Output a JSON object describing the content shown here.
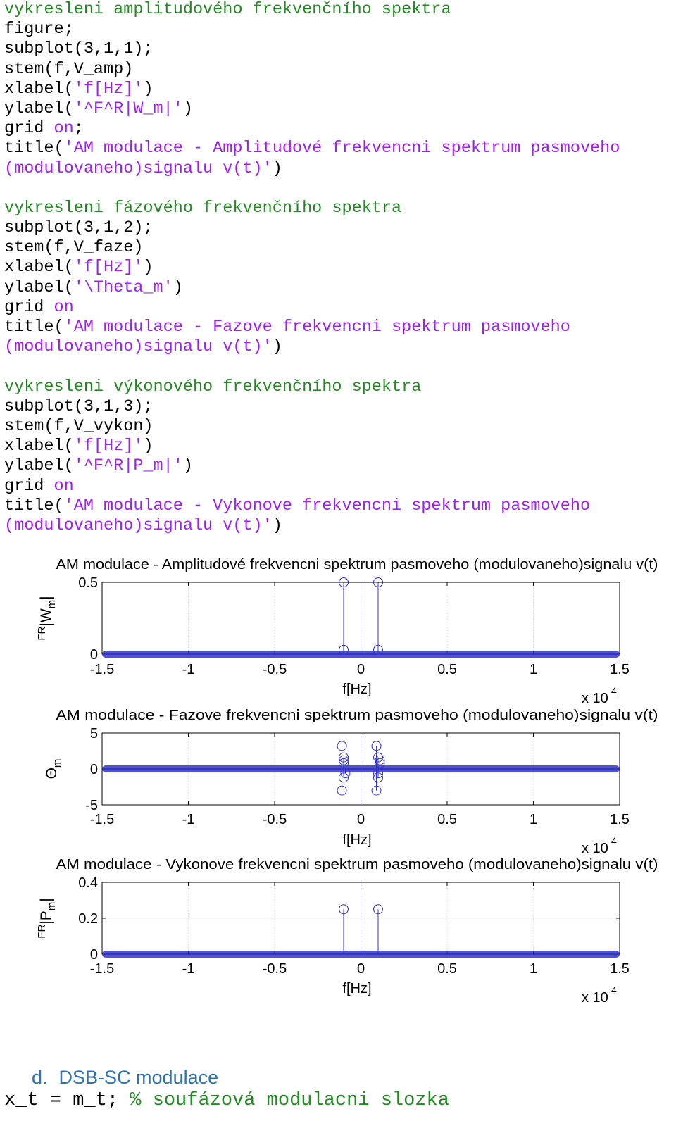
{
  "code_lines": [
    [
      {
        "t": "vykresleni amplitudového frekvenčního spektra",
        "c": "c"
      }
    ],
    [
      {
        "t": "figure;",
        "c": ""
      }
    ],
    [
      {
        "t": "subplot(3,1,1);",
        "c": ""
      }
    ],
    [
      {
        "t": "stem(f,V_amp)",
        "c": ""
      }
    ],
    [
      {
        "t": "xlabel(",
        "c": ""
      },
      {
        "t": "'f[Hz]'",
        "c": "s"
      },
      {
        "t": ")",
        "c": ""
      }
    ],
    [
      {
        "t": "ylabel(",
        "c": ""
      },
      {
        "t": "'^F^R|W_m|'",
        "c": "s"
      },
      {
        "t": ")",
        "c": ""
      }
    ],
    [
      {
        "t": "grid ",
        "c": ""
      },
      {
        "t": "on",
        "c": "s"
      },
      {
        "t": ";",
        "c": ""
      }
    ],
    [
      {
        "t": "title(",
        "c": ""
      },
      {
        "t": "'AM modulace - Amplitudové frekvencni spektrum pasmoveho",
        "c": "s"
      }
    ],
    [
      {
        "t": "(modulovaneho)signalu v(t)'",
        "c": "s"
      },
      {
        "t": ")",
        "c": ""
      }
    ],
    [
      {
        "t": "",
        "c": ""
      }
    ],
    [
      {
        "t": "vykresleni fázového frekvenčního spektra",
        "c": "c"
      }
    ],
    [
      {
        "t": "subplot(3,1,2);",
        "c": ""
      }
    ],
    [
      {
        "t": "stem(f,V_faze)",
        "c": ""
      }
    ],
    [
      {
        "t": "xlabel(",
        "c": ""
      },
      {
        "t": "'f[Hz]'",
        "c": "s"
      },
      {
        "t": ")",
        "c": ""
      }
    ],
    [
      {
        "t": "ylabel(",
        "c": ""
      },
      {
        "t": "'\\Theta_m'",
        "c": "s"
      },
      {
        "t": ")",
        "c": ""
      }
    ],
    [
      {
        "t": "grid ",
        "c": ""
      },
      {
        "t": "on",
        "c": "s"
      }
    ],
    [
      {
        "t": "title(",
        "c": ""
      },
      {
        "t": "'AM modulace - Fazove frekvencni spektrum pasmoveho",
        "c": "s"
      }
    ],
    [
      {
        "t": "(modulovaneho)signalu v(t)'",
        "c": "s"
      },
      {
        "t": ")",
        "c": ""
      }
    ],
    [
      {
        "t": "",
        "c": ""
      }
    ],
    [
      {
        "t": "vykresleni výkonového frekvenčního spektra",
        "c": "c"
      }
    ],
    [
      {
        "t": "subplot(3,1,3);",
        "c": ""
      }
    ],
    [
      {
        "t": "stem(f,V_vykon)",
        "c": ""
      }
    ],
    [
      {
        "t": "xlabel(",
        "c": ""
      },
      {
        "t": "'f[Hz]'",
        "c": "s"
      },
      {
        "t": ")",
        "c": ""
      }
    ],
    [
      {
        "t": "ylabel(",
        "c": ""
      },
      {
        "t": "'^F^R|P_m|'",
        "c": "s"
      },
      {
        "t": ")",
        "c": ""
      }
    ],
    [
      {
        "t": "grid ",
        "c": ""
      },
      {
        "t": "on",
        "c": "s"
      }
    ],
    [
      {
        "t": "title(",
        "c": ""
      },
      {
        "t": "'AM modulace - Vykonove frekvencni spektrum pasmoveho",
        "c": "s"
      }
    ],
    [
      {
        "t": "(modulovaneho)signalu v(t)'",
        "c": "s"
      },
      {
        "t": ")",
        "c": ""
      }
    ]
  ],
  "colors": {
    "comment": "#228b22",
    "string": "#a020f0",
    "stem": "#3333cc",
    "heading": "#2e74b5"
  },
  "chart_data": [
    {
      "type": "stem",
      "title": "AM modulace - Amplitudové frekvencni spektrum pasmoveho (modulovaneho)signalu v(t)",
      "xlabel": "f[Hz]",
      "ylabel_sup": "FR",
      "ylabel_main": "|W",
      "ylabel_sub": "m",
      "ylabel_end": "|",
      "x_multiplier": "x 10",
      "x_exponent": "4",
      "xlim": [
        -1.5,
        1.5
      ],
      "ylim": [
        0,
        0.5
      ],
      "xticks": [
        -1.5,
        -1,
        -0.5,
        0,
        0.5,
        1,
        1.5
      ],
      "xtick_labels": [
        "-1.5",
        "-1",
        "-0.5",
        "0",
        "0.5",
        "1",
        "1.5"
      ],
      "yticks": [
        0,
        0.5
      ],
      "ytick_labels": [
        "0",
        "0.5"
      ],
      "grid": true,
      "baseline_value": 0,
      "stems": [
        {
          "x": -0.1,
          "y": 0.5
        },
        {
          "x": 0.1,
          "y": 0.5
        },
        {
          "x": -0.1,
          "y": 0.03
        },
        {
          "x": 0.1,
          "y": 0.03
        }
      ]
    },
    {
      "type": "stem",
      "title": "AM modulace - Fazove frekvencni spektrum pasmoveho (modulovaneho)signalu v(t)",
      "xlabel": "f[Hz]",
      "ylabel_sup": "",
      "ylabel_main": "Θ",
      "ylabel_sub": "m",
      "ylabel_end": "",
      "x_multiplier": "x 10",
      "x_exponent": "4",
      "xlim": [
        -1.5,
        1.5
      ],
      "ylim": [
        -5,
        5
      ],
      "xticks": [
        -1.5,
        -1,
        -0.5,
        0,
        0.5,
        1,
        1.5
      ],
      "xtick_labels": [
        "-1.5",
        "-1",
        "-0.5",
        "0",
        "0.5",
        "1",
        "1.5"
      ],
      "yticks": [
        -5,
        0,
        5
      ],
      "ytick_labels": [
        "-5",
        "0",
        "5"
      ],
      "grid": true,
      "baseline_value": 0,
      "stems": [
        {
          "x": -0.11,
          "y": 3.2
        },
        {
          "x": -0.11,
          "y": -3.0
        },
        {
          "x": -0.1,
          "y": 1.6
        },
        {
          "x": -0.1,
          "y": -1.2
        },
        {
          "x": -0.1,
          "y": 0.8
        },
        {
          "x": -0.09,
          "y": -0.6
        },
        {
          "x": -0.1,
          "y": 1.2
        },
        {
          "x": 0.09,
          "y": 3.2
        },
        {
          "x": 0.09,
          "y": -3.0
        },
        {
          "x": 0.1,
          "y": 1.6
        },
        {
          "x": 0.1,
          "y": -1.2
        },
        {
          "x": 0.11,
          "y": 0.8
        },
        {
          "x": 0.1,
          "y": -0.6
        },
        {
          "x": 0.11,
          "y": 1.2
        }
      ]
    },
    {
      "type": "stem",
      "title": "AM modulace - Vykonove frekvencni spektrum pasmoveho (modulovaneho)signalu v(t)",
      "xlabel": "f[Hz]",
      "ylabel_sup": "FR",
      "ylabel_main": "|P",
      "ylabel_sub": "m",
      "ylabel_end": "|",
      "x_multiplier": "x 10",
      "x_exponent": "4",
      "xlim": [
        -1.5,
        1.5
      ],
      "ylim": [
        0,
        0.4
      ],
      "xticks": [
        -1.5,
        -1,
        -0.5,
        0,
        0.5,
        1,
        1.5
      ],
      "xtick_labels": [
        "-1.5",
        "-1",
        "-0.5",
        "0",
        "0.5",
        "1",
        "1.5"
      ],
      "yticks": [
        0,
        0.2,
        0.4
      ],
      "ytick_labels": [
        "0",
        "0.2",
        "0.4"
      ],
      "grid": true,
      "baseline_value": 0,
      "stems": [
        {
          "x": -0.1,
          "y": 0.25
        },
        {
          "x": 0.1,
          "y": 0.25
        }
      ]
    }
  ],
  "section": {
    "letter": "d.",
    "title": "DSB-SC modulace"
  },
  "last_line": {
    "code": "x_t = m_t; ",
    "comment": "% soufázová modulacni slozka"
  }
}
